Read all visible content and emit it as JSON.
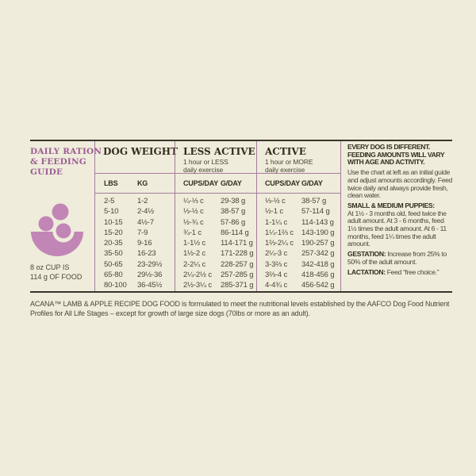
{
  "palette": {
    "background": "#efecdb",
    "accent_purple": "#9c5e94",
    "bowl_purple": "#c286b6",
    "line_purple": "#a47e9b",
    "rule_dark": "#3a342b",
    "text_dark": "#332d1e",
    "text_body": "#4c4536"
  },
  "left_panel": {
    "title_line1": "DAILY RATION",
    "title_line2": "& FEEDING",
    "title_line3": "GUIDE",
    "bowl_icon": "food-bowl-with-kibble-icon",
    "cup_note_line1": "8 oz CUP IS",
    "cup_note_line2": "114 g OF FOOD"
  },
  "table": {
    "groups": [
      {
        "title": "DOG WEIGHT",
        "sub1": "",
        "sub2": "",
        "cols": [
          "LBS",
          "KG"
        ]
      },
      {
        "title": "LESS ACTIVE",
        "sub1": "1 hour or LESS",
        "sub2": "daily exercise",
        "cols": [
          "CUPS/DAY",
          "G/DAY"
        ]
      },
      {
        "title": "ACTIVE",
        "sub1": "1 hour or MORE",
        "sub2": "daily exercise",
        "cols": [
          "CUPS/DAY",
          "G/DAY"
        ]
      }
    ],
    "rows": [
      [
        "2-5",
        "1-2",
        "¼-⅓ c",
        "29-38 g",
        "⅓-½ c",
        "38-57 g"
      ],
      [
        "5-10",
        "2-4½",
        "⅓-½ c",
        "38-57 g",
        "½-1 c",
        "57-114 g"
      ],
      [
        "10-15",
        "4½-7",
        "½-¾ c",
        "57-86 g",
        "1-1¼ c",
        "114-143 g"
      ],
      [
        "15-20",
        "7-9",
        "¾-1 c",
        "86-114 g",
        "1¼-1⅔ c",
        "143-190 g"
      ],
      [
        "20-35",
        "9-16",
        "1-1½ c",
        "114-171 g",
        "1⅔-2¼ c",
        "190-257 g"
      ],
      [
        "35-50",
        "16-23",
        "1½-2 c",
        "171-228 g",
        "2¼-3 c",
        "257-342 g"
      ],
      [
        "50-65",
        "23-29½",
        "2-2¼ c",
        "228-257 g",
        "3-3⅔ c",
        "342-418 g"
      ],
      [
        "65-80",
        "29½-36",
        "2¼-2½ c",
        "257-285 g",
        "3⅔-4 c",
        "418-456 g"
      ],
      [
        "80-100",
        "36-45½",
        "2½-3¼ c",
        "285-371 g",
        "4-4¾ c",
        "456-542 g"
      ]
    ]
  },
  "info_panel": {
    "heading": "EVERY DOG IS DIFFERENT. FEEDING AMOUNTS WILL VARY WITH AGE AND ACTIVITY.",
    "intro": "Use the chart at left as an initial guide and adjust amounts accordingly. Feed twice daily and always provide fresh, clean water.",
    "sections": [
      {
        "label": "SMALL & MEDIUM PUPPIES:",
        "text": "At 1½ - 3 months old, feed twice the adult amount. At 3 - 6 months, feed 1½ times the adult amount. At 6 - 11 months, feed 1¼ times the adult amount."
      },
      {
        "label": "GESTATION:",
        "text": "Increase from 25% to 50% of the adult amount."
      },
      {
        "label": "LACTATION:",
        "text": "Feed “free choice.”"
      }
    ]
  },
  "footnote": "ACANA™ LAMB & APPLE RECIPE DOG FOOD is formulated to meet the nutritional levels established by the AAFCO Dog Food Nutrient Profiles for All Life Stages – except for growth of large size dogs (70lbs or more as an adult)."
}
